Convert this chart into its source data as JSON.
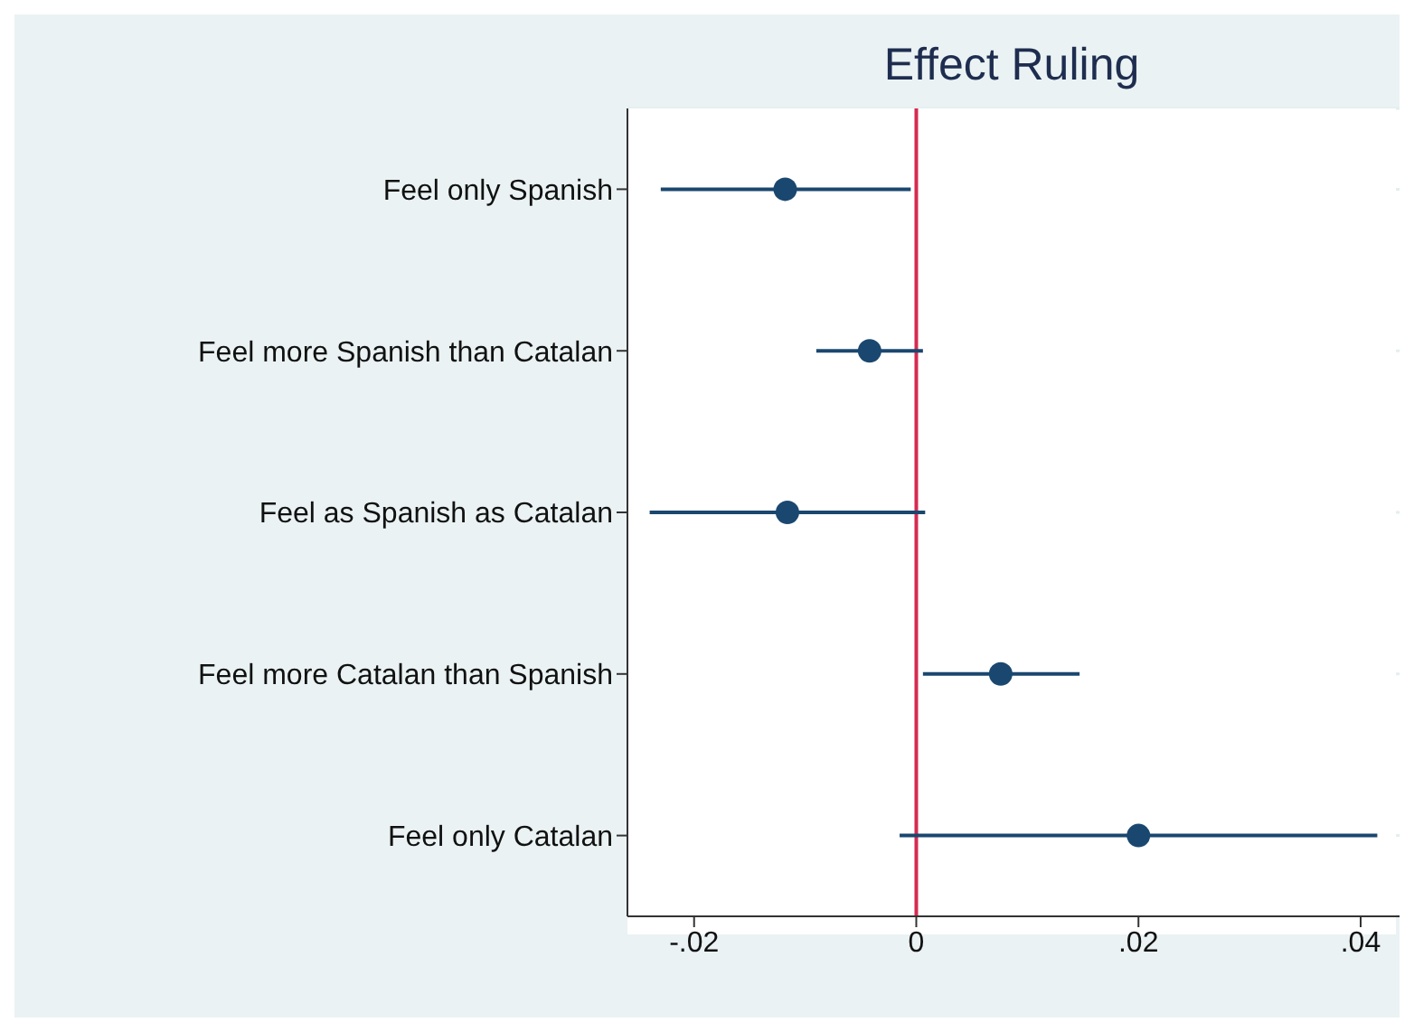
{
  "chart_data": {
    "type": "scatter",
    "orientation": "horizontal",
    "title": "Effect Ruling",
    "categories": [
      "Feel only Spanish",
      "Feel more Spanish than Catalan",
      "Feel as Spanish as Catalan",
      "Feel more Catalan than Spanish",
      "Feel only Catalan"
    ],
    "values": [
      -0.0118,
      -0.0042,
      -0.0116,
      0.0076,
      0.02
    ],
    "errors": [
      [
        -0.023,
        -0.0005
      ],
      [
        -0.009,
        0.0006
      ],
      [
        -0.024,
        0.0008
      ],
      [
        0.0006,
        0.0147
      ],
      [
        -0.0015,
        0.0415
      ]
    ],
    "color": "#1a476f",
    "marker": "circle",
    "grid": "y",
    "xlim": [
      -0.026,
      0.0435
    ],
    "xticks": [
      {
        "value": -0.02,
        "label": "-.02"
      },
      0,
      {
        "value": 0.02,
        "label": ".02"
      },
      {
        "value": 0.04,
        "label": ".04"
      }
    ],
    "ref_lines": [
      {
        "axis": "x",
        "value": 0,
        "color": "#d42a52"
      }
    ]
  }
}
